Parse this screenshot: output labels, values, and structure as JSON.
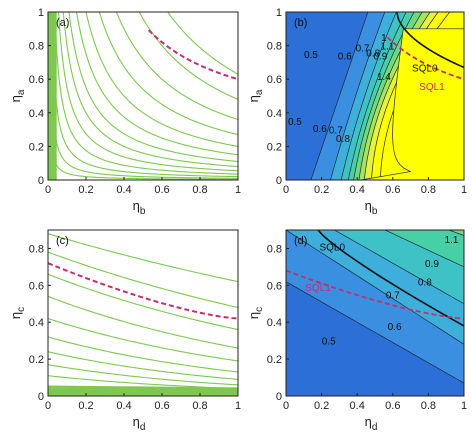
{
  "chart_data": [
    {
      "type": "contour",
      "panel_label": "(a)",
      "xlabel": "η",
      "xlabel_sub": "b",
      "ylabel": "η",
      "ylabel_sub": "a",
      "xlim": [
        0,
        1
      ],
      "ylim": [
        0,
        1
      ],
      "xticks": [
        "0",
        "0.2",
        "0.4",
        "0.6",
        "0.8",
        "1"
      ],
      "yticks": [
        "0",
        "0.2",
        "0.4",
        "0.6",
        "0.8",
        "1"
      ],
      "contour_color": "#7ec850",
      "hyperbola_levels": [
        0.004,
        0.01,
        0.02,
        0.035,
        0.055,
        0.08,
        0.11,
        0.15,
        0.2,
        0.27,
        0.36,
        0.48,
        0.63
      ],
      "dense_vertical_lines_x": [
        0.005,
        0.012,
        0.02,
        0.03,
        0.04
      ],
      "dashed_curve": {
        "color": "#c0306a",
        "level": 0.33,
        "y_offset": 0.27,
        "x_range": [
          0.53,
          1.0
        ]
      },
      "grid": false
    },
    {
      "type": "filled_contour",
      "panel_label": "(b)",
      "xlabel": "η",
      "xlabel_sub": "b",
      "ylabel": "η",
      "ylabel_sub": "a",
      "xlim": [
        0,
        1
      ],
      "ylim": [
        0,
        1
      ],
      "xticks": [
        "0",
        "0.2",
        "0.4",
        "0.6",
        "0.8",
        "1"
      ],
      "yticks": [
        "0",
        "0.2",
        "0.4",
        "0.6",
        "0.8",
        "1"
      ],
      "fill_colors": [
        "#2c6fd6",
        "#3b8fe0",
        "#3eaedb",
        "#3fc2c6",
        "#47cfa5",
        "#6fd97c",
        "#a8e45a",
        "#e8f23a",
        "#ffff00"
      ],
      "contour_labels": [
        {
          "text": "0.5",
          "x": 0.14,
          "y": 0.75
        },
        {
          "text": "0.6",
          "x": 0.33,
          "y": 0.74
        },
        {
          "text": "0.7",
          "x": 0.43,
          "y": 0.79
        },
        {
          "text": "0.8",
          "x": 0.49,
          "y": 0.76
        },
        {
          "text": "0.9",
          "x": 0.53,
          "y": 0.74
        },
        {
          "text": "1",
          "x": 0.55,
          "y": 0.85
        },
        {
          "text": "1.1",
          "x": 0.57,
          "y": 0.8
        },
        {
          "text": "1.4",
          "x": 0.55,
          "y": 0.62
        },
        {
          "text": "0.5",
          "x": 0.05,
          "y": 0.35
        },
        {
          "text": "0.6",
          "x": 0.19,
          "y": 0.31
        },
        {
          "text": "0.7",
          "x": 0.28,
          "y": 0.3
        },
        {
          "text": "0.8",
          "x": 0.32,
          "y": 0.25
        }
      ],
      "sql_labels": [
        {
          "text": "SQL0",
          "x": 0.78,
          "y": 0.67,
          "color": "#111111"
        },
        {
          "text": "SQL1",
          "x": 0.82,
          "y": 0.56,
          "color": "#c0306a"
        }
      ],
      "grid": false
    },
    {
      "type": "contour",
      "panel_label": "(c)",
      "xlabel": "η",
      "xlabel_sub": "d",
      "ylabel": "η",
      "ylabel_sub": "c",
      "xlim": [
        0,
        1
      ],
      "ylim": [
        0,
        0.9
      ],
      "xticks": [
        "0",
        "0.2",
        "0.4",
        "0.6",
        "0.8",
        "1"
      ],
      "yticks": [
        "0",
        "0.2",
        "0.4",
        "0.6",
        "0.8"
      ],
      "contour_color": "#7ec850",
      "curve_intercepts": [
        0.88,
        0.78,
        0.66,
        0.54,
        0.42,
        0.32,
        0.24,
        0.17,
        0.11
      ],
      "curve_end_values": [
        0.62,
        0.48,
        0.36,
        0.26,
        0.19,
        0.13,
        0.09,
        0.06,
        0.04
      ],
      "dense_line_levels": [
        0.005,
        0.012,
        0.02,
        0.028,
        0.036,
        0.044,
        0.052
      ],
      "dashed_line": {
        "color": "#c0306a",
        "y_at_0": 0.72,
        "y_at_1": 0.42
      },
      "grid": false
    },
    {
      "type": "filled_contour",
      "panel_label": "(d)",
      "xlabel": "η",
      "xlabel_sub": "d",
      "ylabel": "η",
      "ylabel_sub": "c",
      "xlim": [
        0,
        1
      ],
      "ylim": [
        0,
        0.9
      ],
      "xticks": [
        "0",
        "0.2",
        "0.4",
        "0.6",
        "0.8",
        "1"
      ],
      "yticks": [
        "0",
        "0.2",
        "0.4",
        "0.6",
        "0.8"
      ],
      "fill_colors": [
        "#2c6fd6",
        "#3b8fe0",
        "#3eaedb",
        "#3fc2c6",
        "#47cfa5",
        "#6fd97c"
      ],
      "contour_labels": [
        {
          "text": "0.5",
          "x": 0.24,
          "y": 0.3
        },
        {
          "text": "0.6",
          "x": 0.61,
          "y": 0.38
        },
        {
          "text": "0.7",
          "x": 0.6,
          "y": 0.55
        },
        {
          "text": "0.8",
          "x": 0.78,
          "y": 0.62
        },
        {
          "text": "0.9",
          "x": 0.82,
          "y": 0.72
        },
        {
          "text": "1.1",
          "x": 0.93,
          "y": 0.85
        }
      ],
      "sql_labels": [
        {
          "text": "SQL0",
          "x": 0.26,
          "y": 0.81,
          "color": "#111111"
        },
        {
          "text": "SQL1",
          "x": 0.18,
          "y": 0.59,
          "color": "#c0306a"
        }
      ],
      "grid": false
    }
  ]
}
